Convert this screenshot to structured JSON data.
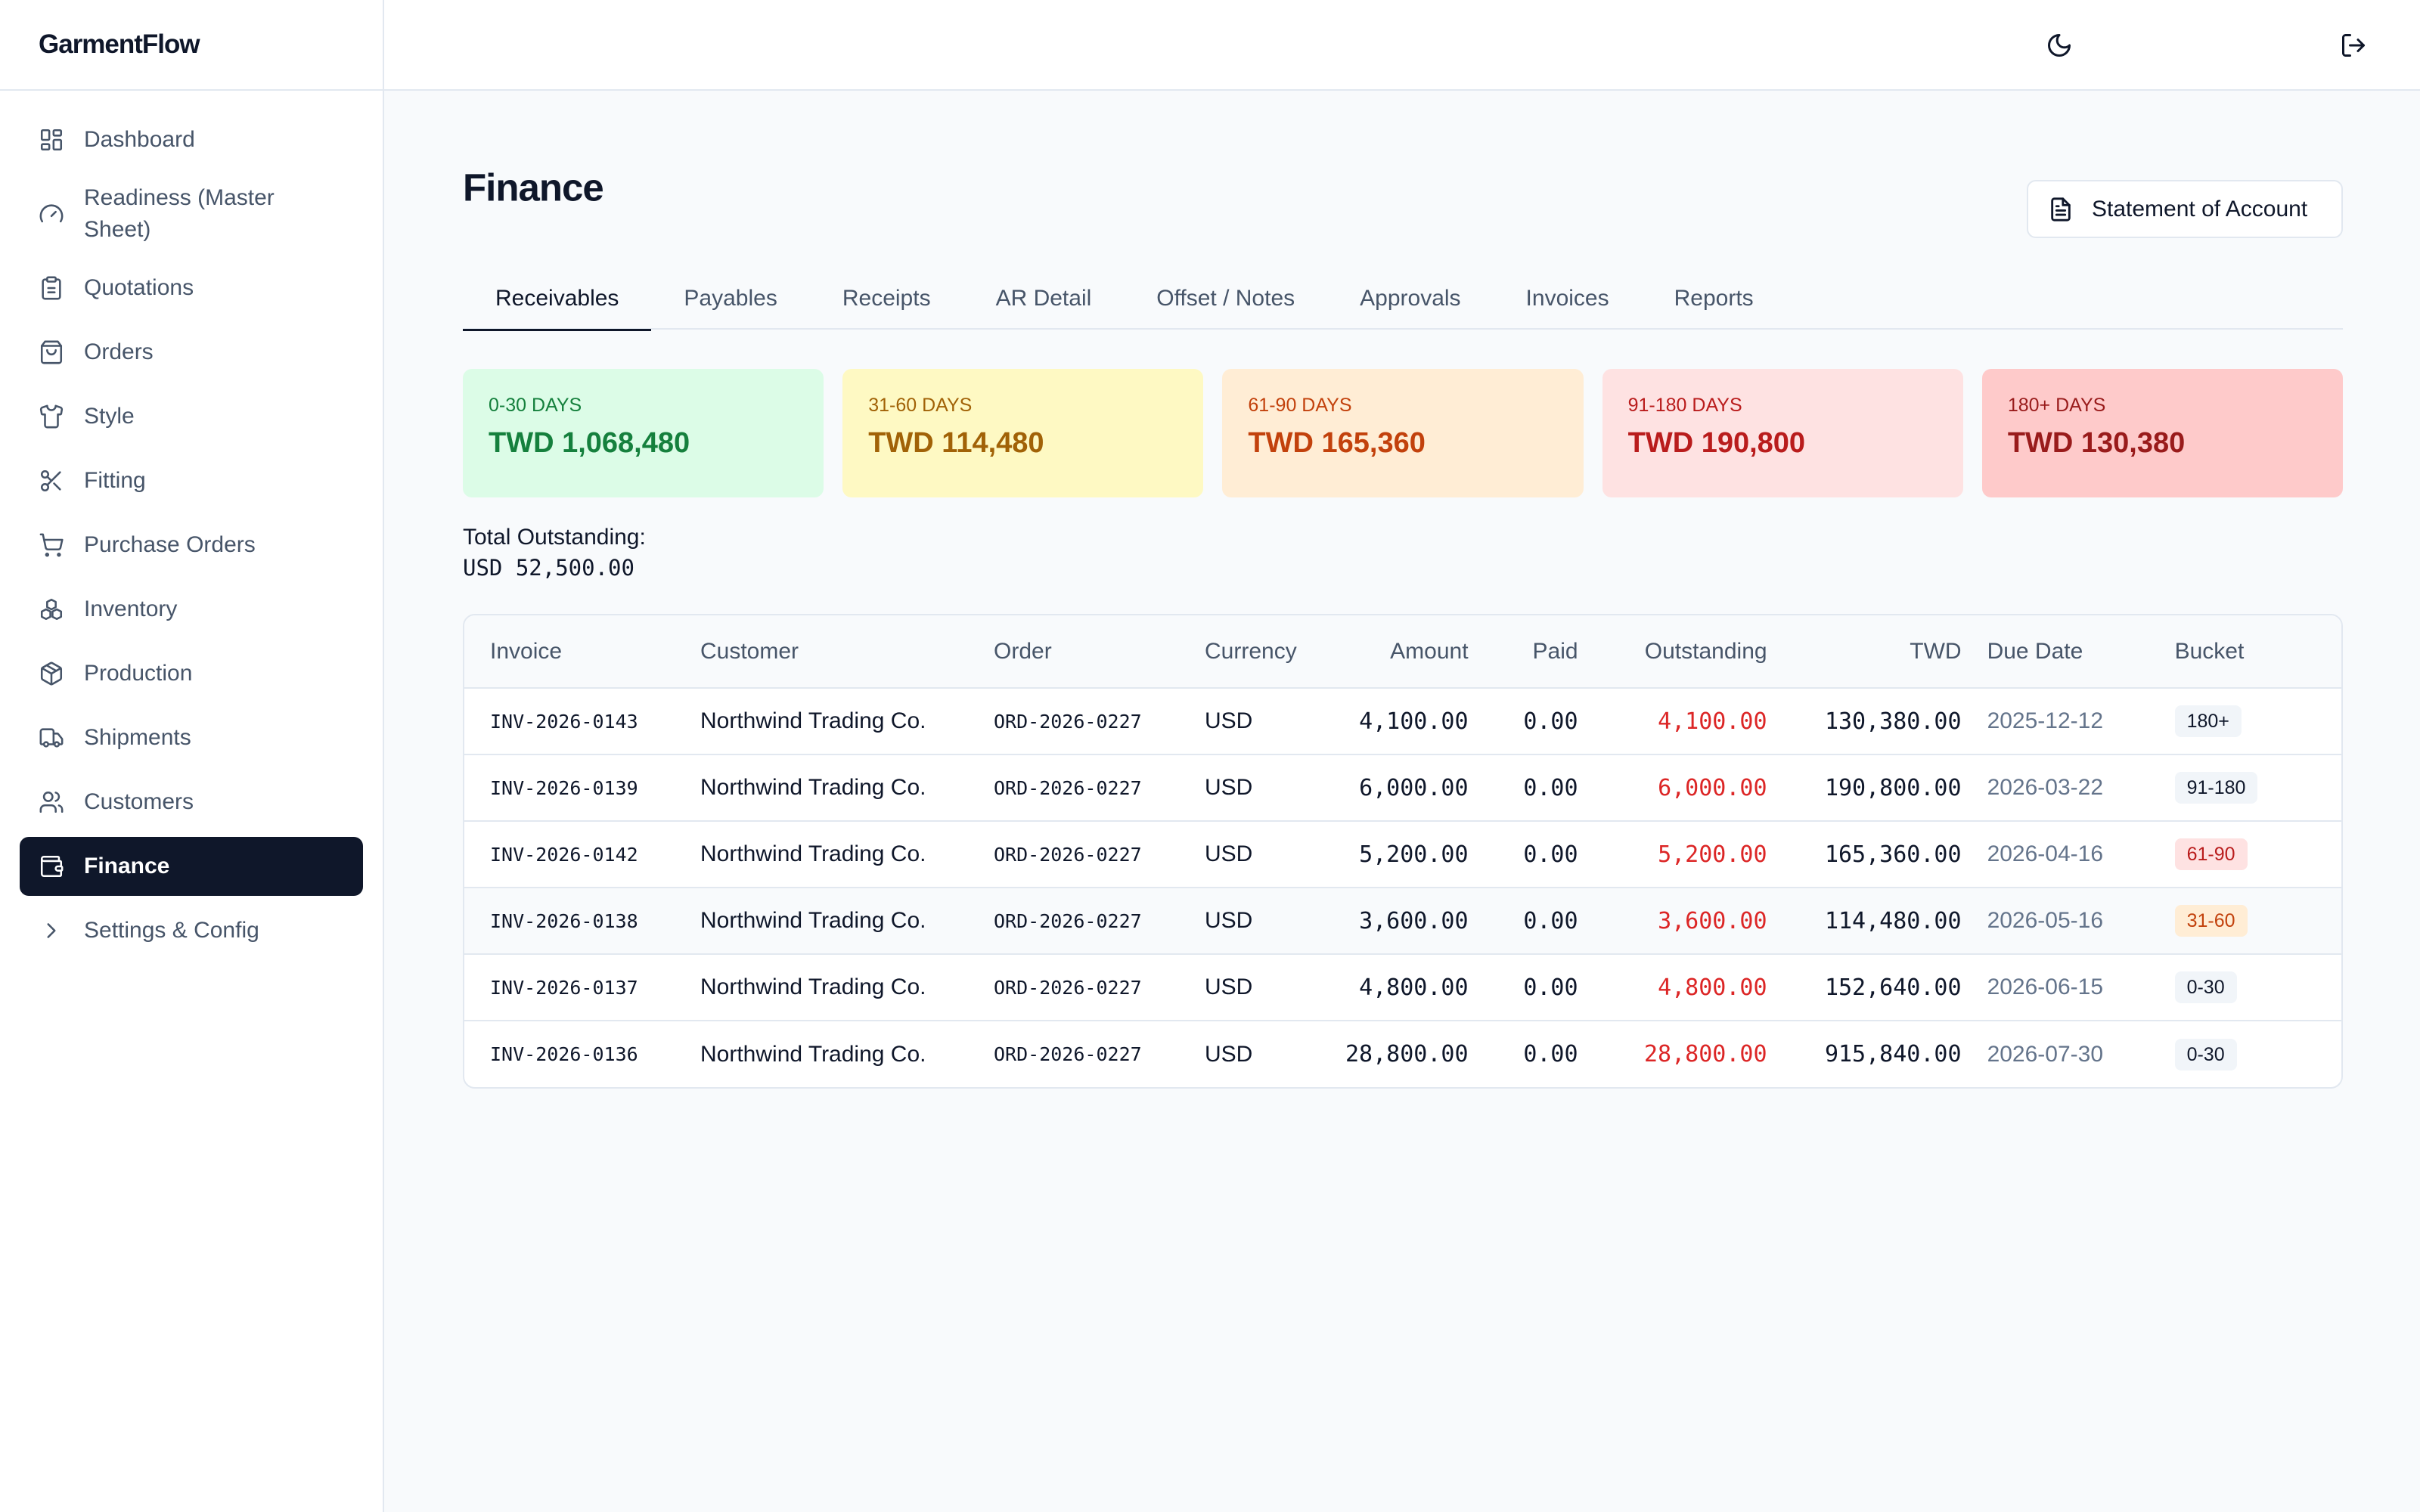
{
  "app": {
    "name": "GarmentFlow"
  },
  "sidebar": {
    "items": [
      {
        "label": "Dashboard",
        "icon": "dashboard-icon"
      },
      {
        "label": "Readiness (Master Sheet)",
        "icon": "gauge-icon"
      },
      {
        "label": "Quotations",
        "icon": "clipboard-icon"
      },
      {
        "label": "Orders",
        "icon": "bag-icon"
      },
      {
        "label": "Style",
        "icon": "shirt-icon"
      },
      {
        "label": "Fitting",
        "icon": "scissors-icon"
      },
      {
        "label": "Purchase Orders",
        "icon": "cart-icon"
      },
      {
        "label": "Inventory",
        "icon": "boxes-icon"
      },
      {
        "label": "Production",
        "icon": "package-icon"
      },
      {
        "label": "Shipments",
        "icon": "truck-icon"
      },
      {
        "label": "Customers",
        "icon": "users-icon"
      },
      {
        "label": "Finance",
        "icon": "wallet-icon",
        "active": true
      },
      {
        "label": "Settings & Config",
        "icon": "chevron-right-icon"
      }
    ]
  },
  "topbar": {
    "theme_icon": "moon-icon",
    "logout_icon": "logout-icon"
  },
  "page": {
    "title": "Finance",
    "statement_button": "Statement of Account"
  },
  "tabs": [
    {
      "label": "Receivables",
      "active": true
    },
    {
      "label": "Payables"
    },
    {
      "label": "Receipts"
    },
    {
      "label": "AR Detail"
    },
    {
      "label": "Offset / Notes"
    },
    {
      "label": "Approvals"
    },
    {
      "label": "Invoices"
    },
    {
      "label": "Reports"
    }
  ],
  "aging": [
    {
      "label": "0-30 days",
      "value": "TWD 1,068,480",
      "bg": "#dcfce7",
      "key_color": "#15803d",
      "value_color": "#15803d"
    },
    {
      "label": "31-60 days",
      "value": "TWD 114,480",
      "bg": "#fef9c3",
      "key_color": "#a16207",
      "value_color": "#a16207"
    },
    {
      "label": "61-90 days",
      "value": "TWD 165,360",
      "bg": "#ffedd5",
      "key_color": "#c2410c",
      "value_color": "#c2410c"
    },
    {
      "label": "91-180 days",
      "value": "TWD 190,800",
      "bg": "#fee2e2",
      "key_color": "#b91c1c",
      "value_color": "#b91c1c"
    },
    {
      "label": "180+ days",
      "value": "TWD 130,380",
      "bg": "#fecaca",
      "key_color": "#991b1b",
      "value_color": "#991b1b"
    }
  ],
  "total": {
    "label": "Total Outstanding:",
    "value": "USD 52,500.00"
  },
  "table": {
    "columns": [
      "Invoice",
      "Customer",
      "Order",
      "Currency",
      "Amount",
      "Paid",
      "Outstanding",
      "TWD",
      "Due Date",
      "Bucket"
    ],
    "rows": [
      {
        "invoice": "INV-2026-0143",
        "customer": "Northwind Trading Co.",
        "order": "ORD-2026-0227",
        "currency": "USD",
        "amount": "4,100.00",
        "paid": "0.00",
        "outstanding": "4,100.00",
        "twd": "130,380.00",
        "due": "2025-12-12",
        "bucket": "180+",
        "bucket_bg": "#f1f5f9",
        "bucket_fg": "#0f172a"
      },
      {
        "invoice": "INV-2026-0139",
        "customer": "Northwind Trading Co.",
        "order": "ORD-2026-0227",
        "currency": "USD",
        "amount": "6,000.00",
        "paid": "0.00",
        "outstanding": "6,000.00",
        "twd": "190,800.00",
        "due": "2026-03-22",
        "bucket": "91-180",
        "bucket_bg": "#f1f5f9",
        "bucket_fg": "#0f172a"
      },
      {
        "invoice": "INV-2026-0142",
        "customer": "Northwind Trading Co.",
        "order": "ORD-2026-0227",
        "currency": "USD",
        "amount": "5,200.00",
        "paid": "0.00",
        "outstanding": "5,200.00",
        "twd": "165,360.00",
        "due": "2026-04-16",
        "bucket": "61-90",
        "bucket_bg": "#fee2e2",
        "bucket_fg": "#b91c1c"
      },
      {
        "invoice": "INV-2026-0138",
        "customer": "Northwind Trading Co.",
        "order": "ORD-2026-0227",
        "currency": "USD",
        "amount": "3,600.00",
        "paid": "0.00",
        "outstanding": "3,600.00",
        "twd": "114,480.00",
        "due": "2026-05-16",
        "bucket": "31-60",
        "bucket_bg": "#ffedd5",
        "bucket_fg": "#c2410c"
      },
      {
        "invoice": "INV-2026-0137",
        "customer": "Northwind Trading Co.",
        "order": "ORD-2026-0227",
        "currency": "USD",
        "amount": "4,800.00",
        "paid": "0.00",
        "outstanding": "4,800.00",
        "twd": "152,640.00",
        "due": "2026-06-15",
        "bucket": "0-30",
        "bucket_bg": "#f1f5f9",
        "bucket_fg": "#0f172a"
      },
      {
        "invoice": "INV-2026-0136",
        "customer": "Northwind Trading Co.",
        "order": "ORD-2026-0227",
        "currency": "USD",
        "amount": "28,800.00",
        "paid": "0.00",
        "outstanding": "28,800.00",
        "twd": "915,840.00",
        "due": "2026-07-30",
        "bucket": "0-30",
        "bucket_bg": "#f1f5f9",
        "bucket_fg": "#0f172a"
      }
    ]
  }
}
